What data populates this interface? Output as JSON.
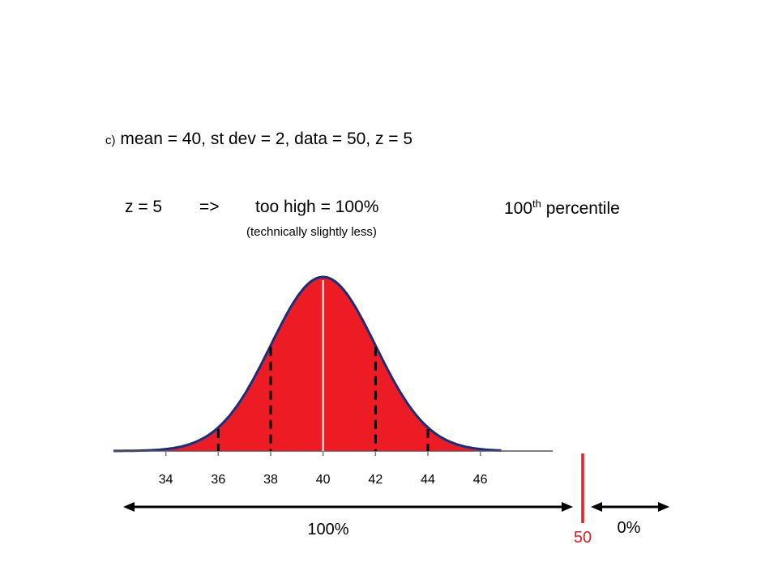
{
  "header": {
    "part_label": "c)",
    "givens": "mean = 40,  st dev = 2,  data = 50,   z  = 5",
    "z_text": "z = 5",
    "arrow": "=>",
    "result": "too high = 100%",
    "percentile_number": "100",
    "percentile_suffix": "th",
    "percentile_word": "percentile",
    "note": "(technically slightly less)"
  },
  "chart_data": {
    "type": "area",
    "distribution": "normal",
    "mean": 40,
    "sd": 2,
    "xlim": [
      32,
      50
    ],
    "tick_labels": [
      "34",
      "36",
      "38",
      "40",
      "42",
      "44",
      "46"
    ],
    "ticks": [
      34,
      36,
      38,
      40,
      42,
      44,
      46
    ],
    "shaded_range": [
      32,
      50
    ],
    "fill_color": "#ED1C24",
    "outline_color": "#1F2A7A",
    "dashed_lines_at": [
      36,
      38,
      42,
      44
    ],
    "mean_line_at": 40,
    "data_value": 50,
    "data_value_label": "50",
    "data_marker_color": "#E31E24",
    "left_region_label": "100%",
    "right_region_label": "0%"
  }
}
